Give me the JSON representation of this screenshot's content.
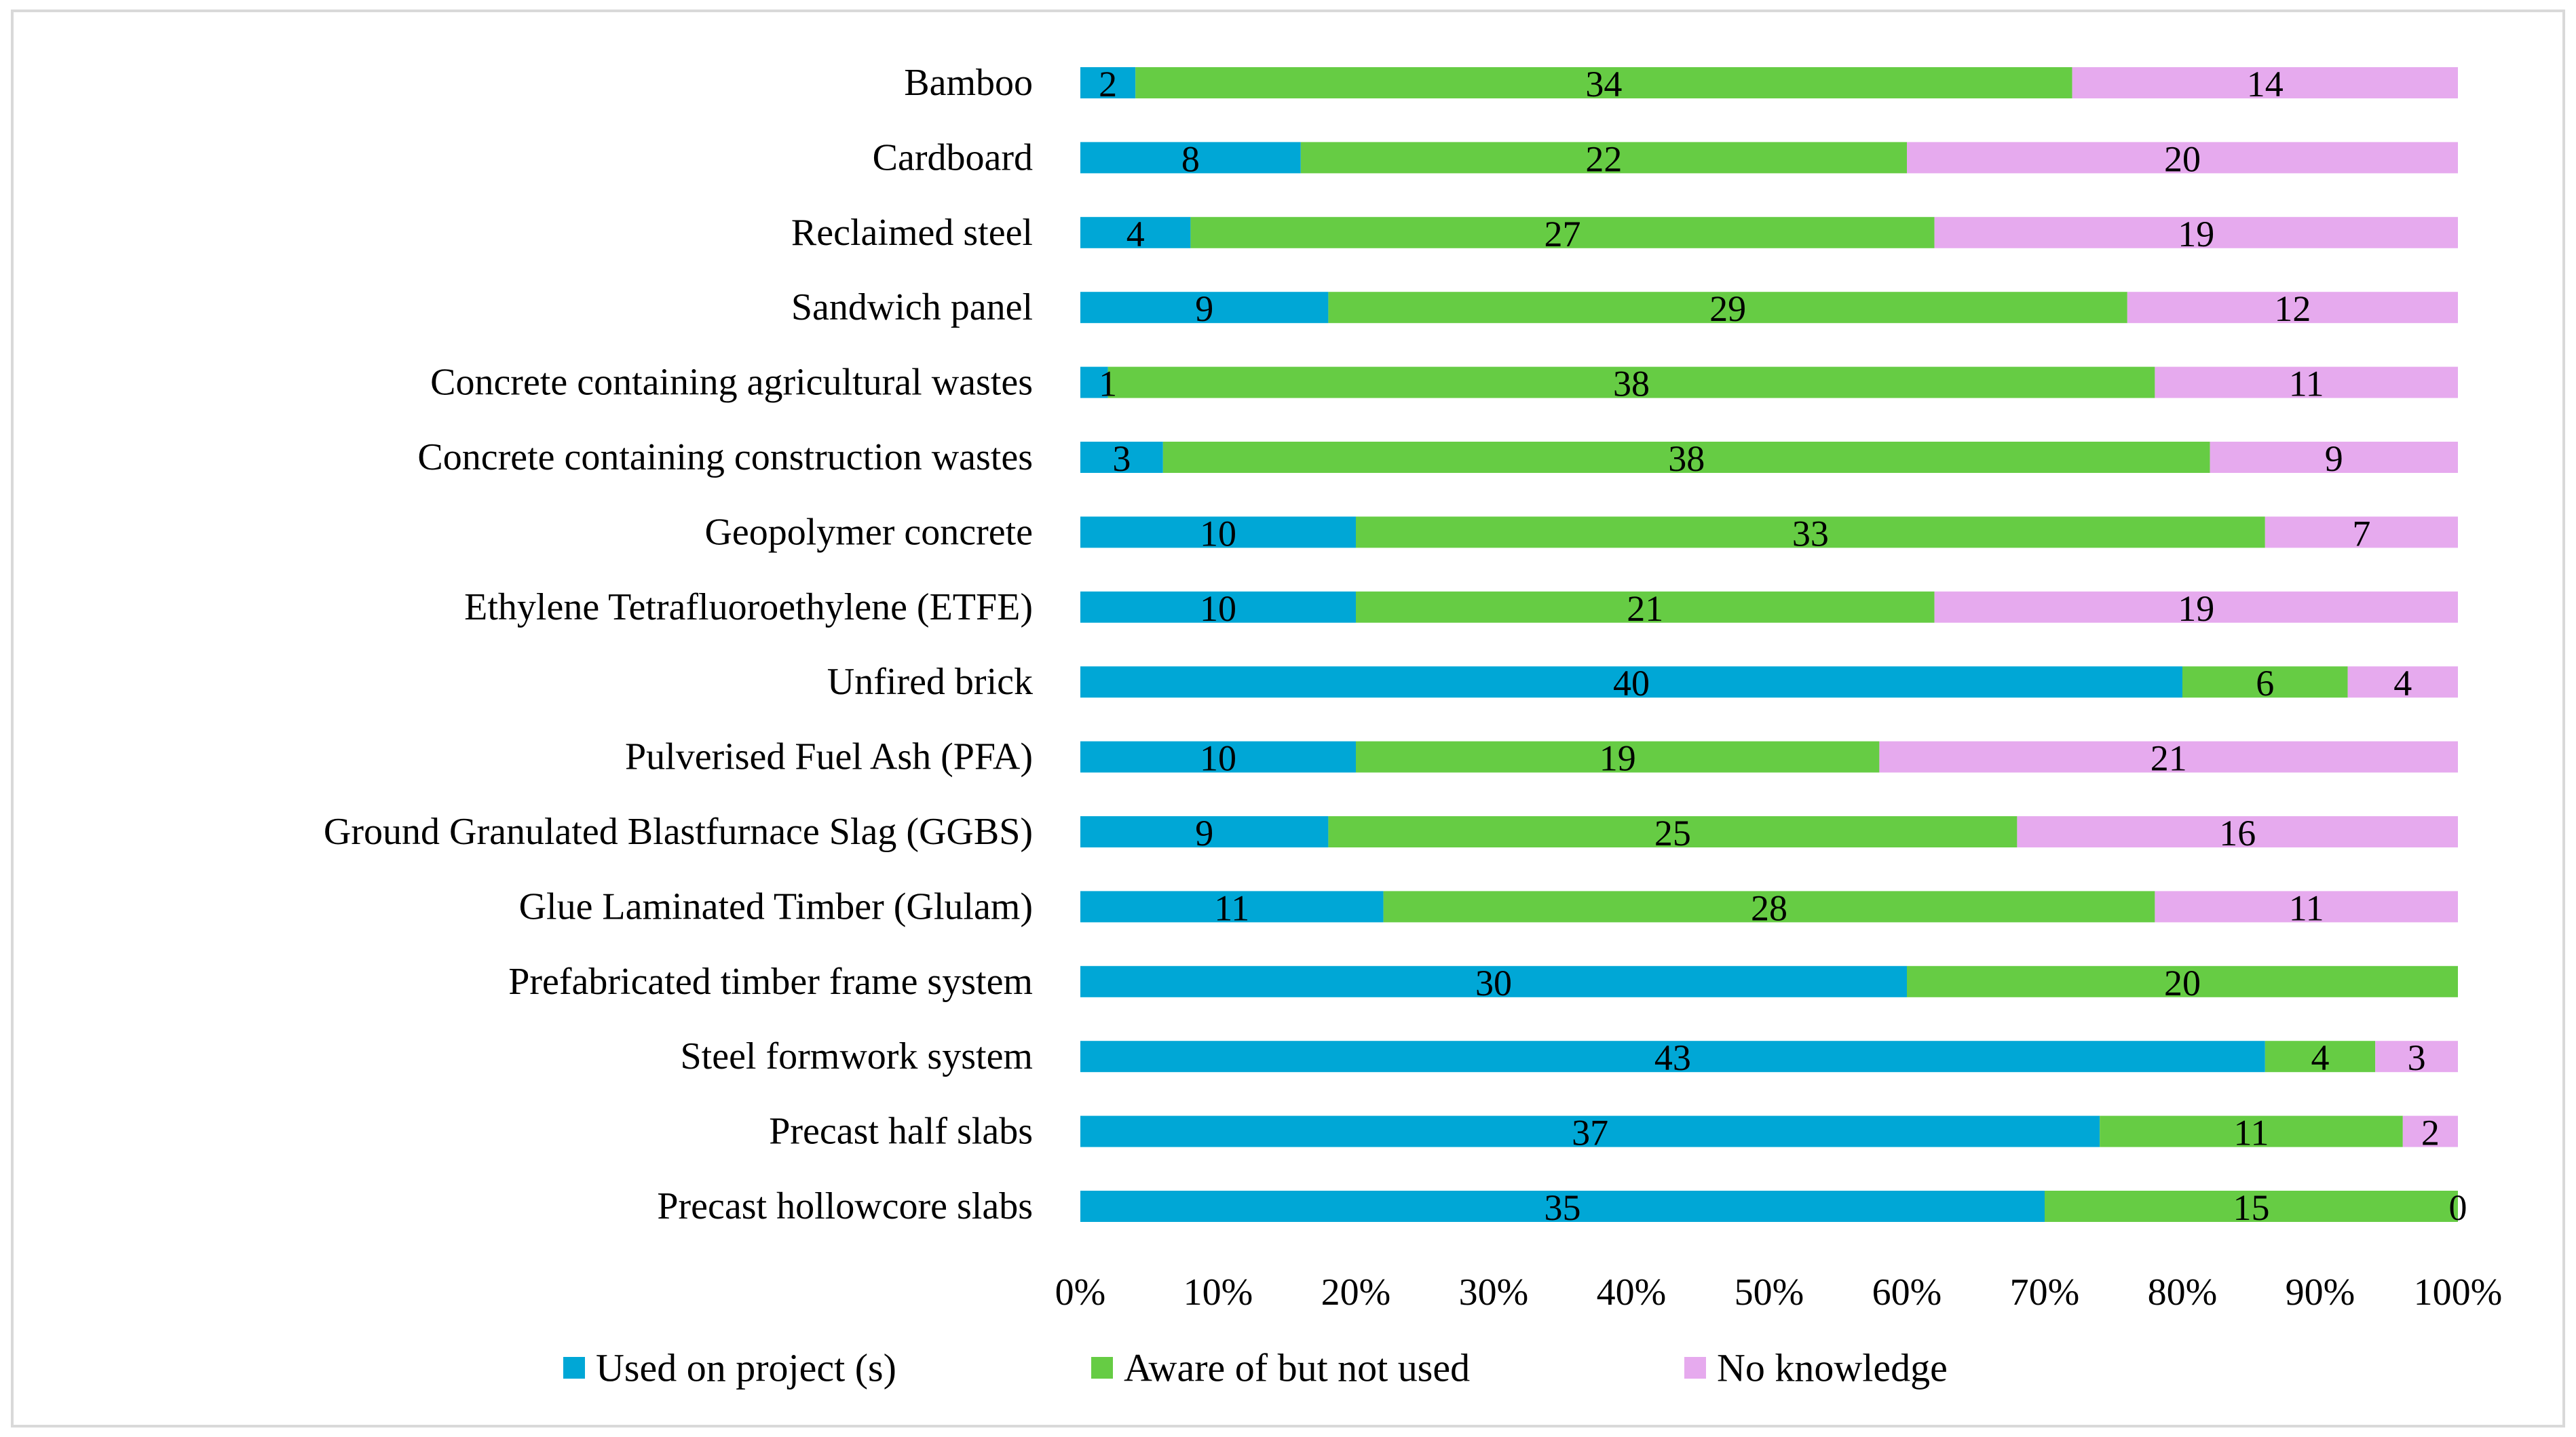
{
  "chart_data": {
    "type": "bar",
    "orientation": "horizontal",
    "stacked": "percent",
    "title": "",
    "xlabel": "",
    "ylabel": "",
    "xlim": [
      0,
      100
    ],
    "x_ticks": [
      "0%",
      "10%",
      "20%",
      "30%",
      "40%",
      "50%",
      "60%",
      "70%",
      "80%",
      "90%",
      "100%"
    ],
    "grid": false,
    "legend_position": "bottom",
    "categories": [
      "Bamboo",
      "Cardboard",
      "Reclaimed steel",
      "Sandwich panel",
      "Concrete containing agricultural wastes",
      "Concrete containing construction wastes",
      "Geopolymer concrete",
      "Ethylene Tetrafluoroethylene (ETFE)",
      "Unfired brick",
      "Pulverised Fuel Ash (PFA)",
      "Ground Granulated Blastfurnace Slag (GGBS)",
      "Glue Laminated Timber (Glulam)",
      "Prefabricated timber frame system",
      "Steel formwork system",
      "Precast half slabs",
      "Precast hollowcore slabs"
    ],
    "series": [
      {
        "name": "Used on project (s)",
        "color": "#00A7D6",
        "values": [
          2,
          8,
          4,
          9,
          1,
          3,
          10,
          10,
          40,
          10,
          9,
          11,
          30,
          43,
          37,
          35
        ]
      },
      {
        "name": "Aware of but not used",
        "color": "#66CC44",
        "values": [
          34,
          22,
          27,
          29,
          38,
          38,
          33,
          21,
          6,
          19,
          25,
          28,
          20,
          4,
          11,
          15
        ]
      },
      {
        "name": "No knowledge",
        "color": "#E6AAEE",
        "values": [
          14,
          20,
          19,
          12,
          11,
          9,
          7,
          19,
          4,
          21,
          16,
          11,
          0,
          3,
          2,
          0
        ]
      }
    ],
    "hidden_zero_labels": [
      [
        2,
        12
      ]
    ]
  }
}
